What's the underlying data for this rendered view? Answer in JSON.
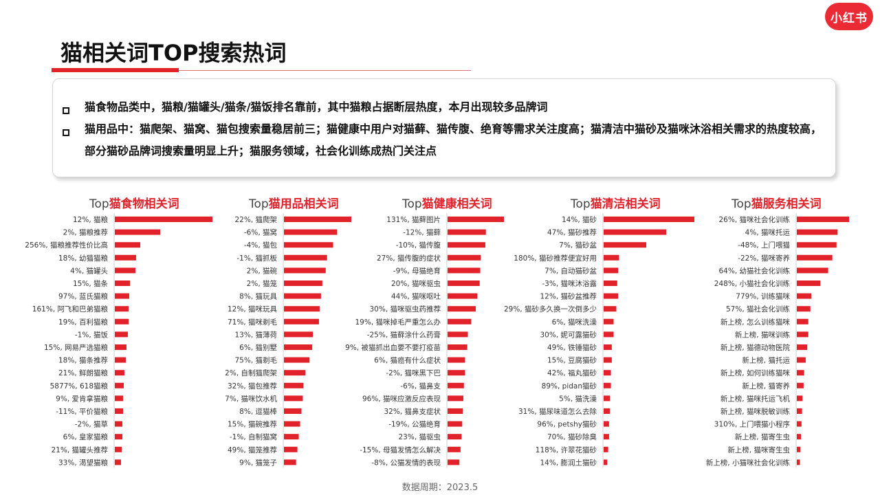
{
  "brand": "小红书",
  "title": "猫相关词TOP搜索热词",
  "summary": [
    "猫食物品类中，猫粮/猫罐头/猫条/猫饭排名靠前，其中猫粮占据断层热度，本月出现较多品牌词",
    "猫用品中：猫爬架、猫窝、猫包搜索量稳居前三；猫健康中用户对猫藓、猫传腹、绝育等需求关注度高；猫清洁中猫砂及猫咪沐浴相关需求的热度较高，部分猫砂品牌词搜索量明显上升；猫服务领域，社会化训练成热门关注点"
  ],
  "footer": "数据周期：2023.5",
  "colors": {
    "accent": "#e1222b",
    "text": "#222222"
  },
  "chart_data": [
    {
      "type": "bar",
      "orientation": "horizontal",
      "title_prefix": "Top",
      "title": "猫食物相关词",
      "categories": [
        "12%, 猫粮",
        "2%, 猫粮推荐",
        "256%, 猫粮推荐性价比高",
        "18%, 幼猫猫粮",
        "4%, 猫罐头",
        "15%, 猫条",
        "97%, 蓝氏猫粮",
        "161%, 阿飞和巴弟猫粮",
        "19%, 百利猫粮",
        "-1%, 猫饭",
        "15%, 网易严选猫粮",
        "18%, 猫条推荐",
        "21%, 鲜朗猫粮",
        "5877%, 618猫粮",
        "9%, 爱肯拿猫粮",
        "-11%, 平价猫粮",
        "-2%, 猫草",
        "6%, 皇家猫粮",
        "21%, 猫罐头推荐",
        "33%, 渴望猫粮"
      ],
      "values": [
        142,
        66,
        37,
        31,
        30,
        22,
        21,
        20,
        20,
        19,
        17,
        16,
        14,
        13,
        12,
        12,
        11,
        11,
        10,
        9
      ]
    },
    {
      "type": "bar",
      "orientation": "horizontal",
      "title_prefix": "Top",
      "title": "猫用品相关词",
      "categories": [
        "22%, 猫爬架",
        "-6%, 猫窝",
        "-4%, 猫包",
        "-1%, 猫抓板",
        "2%, 猫碗",
        "2%, 猫笼",
        "8%, 猫玩具",
        "12%, 猫咪玩具",
        "71%, 猫咪剃毛",
        "13%, 猫薄荷",
        "6%, 猫别墅",
        "75%, 猫剃毛",
        "2%, 自制猫爬架",
        "32%, 猫包推荐",
        "7%, 猫咪饮水机",
        "8%, 逗猫棒",
        "15%, 猫碗推荐",
        "-1%, 自制猫窝",
        "49%, 猫笼推荐",
        "9%, 猫笼子"
      ],
      "values": [
        100,
        79,
        73,
        64,
        62,
        57,
        55,
        53,
        52,
        43,
        42,
        38,
        32,
        29,
        28,
        26,
        24,
        22,
        20,
        18
      ]
    },
    {
      "type": "bar",
      "orientation": "horizontal",
      "title_prefix": "Top",
      "title": "猫健康相关词",
      "categories": [
        "131%, 猫藓图片",
        "-12%, 猫藓",
        "-10%, 猫传腹",
        "27%, 猫传腹的症状",
        "-9%, 母猫绝育",
        "20%, 猫咪驱虫",
        "44%, 猫咪呕吐",
        "30%, 猫咪驱虫药推荐",
        "19%, 猫咪掉毛严重怎么办",
        "-25%, 猫藓涂什么药膏",
        "9%, 被猫抓出血要不要打疫苗",
        "6%, 猫癌有什么症状",
        "-2%, 猫咪黑下巴",
        "-6%, 猫鼻支",
        "96%, 猫咪应激反应表现",
        "32%, 猫鼻支症状",
        "-19%, 公猫绝育",
        "23%, 猫驱虫",
        "-15%, 母猫发情怎么解决",
        "-8%, 公猫发情的表现"
      ],
      "values": [
        100,
        68,
        67,
        59,
        58,
        57,
        53,
        50,
        42,
        36,
        35,
        31,
        31,
        29,
        28,
        27,
        26,
        25,
        23,
        21
      ]
    },
    {
      "type": "bar",
      "orientation": "horizontal",
      "title_prefix": "Top",
      "title": "猫清洁相关词",
      "categories": [
        "14%, 猫砂",
        "47%, 猫砂推荐",
        "7%, 猫砂盆",
        "180%, 猫砂推荐便宜好用",
        "7%, 自动猫砂盆",
        "-3%, 猫咪沐浴露",
        "12%, 猫砂盆推荐",
        "29%, 猫砂多久换一次倒多少",
        "6%, 猫咪洗澡",
        "30%, 妮可露猫砂",
        "49%, 铁锤猫砂",
        "15%, 豆腐猫砂",
        "42%, 福丸猫砂",
        "89%, pidan猫砂",
        "5%, 猫洗澡",
        "31%, 猫尿味道怎么去除",
        "96%, petshy猫砂",
        "70%, 猫砂除臭",
        "118%, 许翠花猫砂",
        "14%, 膨润土猫砂"
      ],
      "values": [
        100,
        69,
        47,
        17,
        16,
        15,
        16,
        14,
        11,
        11,
        9,
        9,
        8,
        8,
        7,
        7,
        6,
        6,
        5,
        4
      ]
    },
    {
      "type": "bar",
      "orientation": "horizontal",
      "title_prefix": "Top",
      "title": "猫服务相关词",
      "categories": [
        "26%, 猫咪社会化训练",
        "4%, 猫咪托运",
        "-48%, 上门喂猫",
        "-22%, 猫咪寄养",
        "64%, 幼猫社会化训练",
        "248%, 小猫社会化训练",
        "779%, 训练猫咪",
        "57%, 猫社会化训练",
        "新上榜, 怎么训练猫咪",
        "新上榜, 猫咪训练",
        "新上榜, 猫德动物医院",
        "新上榜, 猫托运",
        "新上榜, 如何训练猫咪",
        "新上榜, 猫寄养",
        "新上榜, 猫咪托运飞机",
        "新上榜, 猫咪脱敏训练",
        "310%, 上门喂猫小程序",
        "新上榜, 猫寄生虫",
        "新上榜, 猫咪寄生虫",
        "新上榜, 小猫咪社会化训练"
      ],
      "values": [
        100,
        78,
        76,
        68,
        60,
        45,
        28,
        26,
        22,
        22,
        20,
        17,
        14,
        13,
        11,
        10,
        9,
        8,
        7,
        6
      ]
    }
  ]
}
